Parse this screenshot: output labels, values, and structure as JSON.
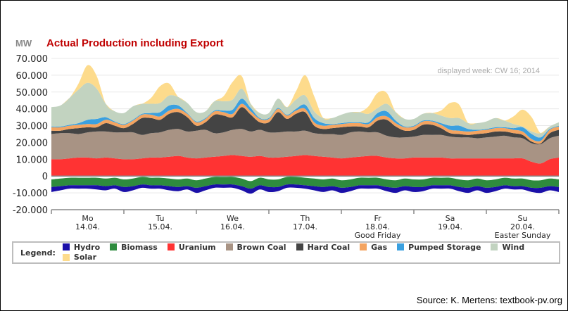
{
  "chart_data": {
    "type": "area",
    "title": "Actual Production including Export",
    "unit_label": "MW",
    "subtitle": "displayed week: CW 16; 2014",
    "ylim": [
      -20000,
      70000
    ],
    "yticks": [
      "-20.000",
      "-10.000",
      "0",
      "10.000",
      "20.000",
      "30.000",
      "40.000",
      "50.000",
      "60.000",
      "70.000"
    ],
    "ytick_values": [
      -20000,
      -10000,
      0,
      10000,
      20000,
      30000,
      40000,
      50000,
      60000,
      70000
    ],
    "x_days": [
      {
        "day": "Mo",
        "date": "14.04.",
        "note": ""
      },
      {
        "day": "Tu",
        "date": "15.04.",
        "note": ""
      },
      {
        "day": "We",
        "date": "16.04.",
        "note": ""
      },
      {
        "day": "Th",
        "date": "17.04.",
        "note": ""
      },
      {
        "day": "Fr",
        "date": "18.04.",
        "note": "Good Friday"
      },
      {
        "day": "Sa",
        "date": "19.04.",
        "note": ""
      },
      {
        "day": "Su",
        "date": "20.04.",
        "note": "Easter Sunday"
      }
    ],
    "x_hours": [
      0,
      3,
      6,
      9,
      12,
      15,
      18,
      21,
      24,
      27,
      30,
      33,
      36,
      39,
      42,
      45,
      48,
      51,
      54,
      57,
      60,
      63,
      66,
      69,
      72,
      75,
      78,
      81,
      84,
      87,
      90,
      93,
      96,
      99,
      102,
      105,
      108,
      111,
      114,
      117,
      120,
      123,
      126,
      129,
      132,
      135,
      138,
      141,
      144,
      147,
      150,
      153,
      156,
      159,
      162,
      165,
      168
    ],
    "positive_series": [
      {
        "name": "Uranium",
        "color": "#ff3333",
        "values": [
          10000,
          10000,
          10500,
          11000,
          11000,
          10500,
          11000,
          10500,
          10000,
          10000,
          10500,
          11000,
          11000,
          11500,
          12000,
          11000,
          10500,
          11000,
          11500,
          12000,
          12500,
          12000,
          11500,
          12000,
          11000,
          11000,
          11500,
          12000,
          12500,
          12000,
          11500,
          11000,
          10500,
          11000,
          11500,
          12000,
          12000,
          11000,
          10500,
          10500,
          11000,
          11000,
          11000,
          11000,
          10500,
          10500,
          10500,
          10500,
          10500,
          10500,
          10500,
          10500,
          10500,
          8500,
          7500,
          10000,
          11000
        ]
      },
      {
        "name": "Brown Coal",
        "color": "#a89384",
        "values": [
          15000,
          15500,
          15000,
          14000,
          15000,
          16000,
          15500,
          15500,
          16000,
          16000,
          14000,
          14500,
          15000,
          16000,
          16000,
          15500,
          16500,
          16500,
          14000,
          14000,
          15000,
          16000,
          15000,
          15500,
          15000,
          15000,
          15000,
          14500,
          14500,
          13500,
          13500,
          14000,
          14000,
          15000,
          15000,
          14000,
          14000,
          13000,
          12500,
          12500,
          12500,
          13500,
          13500,
          13500,
          13000,
          12500,
          12500,
          12000,
          12500,
          13000,
          13500,
          12500,
          12000,
          11000,
          11500,
          12500,
          13000
        ]
      },
      {
        "name": "Hard Coal",
        "color": "#444444",
        "values": [
          2000,
          1500,
          2500,
          3500,
          3000,
          2500,
          5000,
          4000,
          2500,
          5000,
          10000,
          9000,
          7500,
          9500,
          10000,
          8500,
          3000,
          4500,
          11000,
          10000,
          7500,
          13000,
          10000,
          4500,
          6000,
          12000,
          7500,
          10500,
          11000,
          4500,
          3000,
          3500,
          4500,
          3500,
          3000,
          3000,
          7000,
          9500,
          6500,
          4000,
          4000,
          6000,
          6000,
          4000,
          2000,
          2000,
          1500,
          2500,
          2500,
          3000,
          2500,
          2500,
          2000,
          1000,
          500,
          3000,
          3500
        ]
      },
      {
        "name": "Gas",
        "color": "#f4a460",
        "values": [
          2000,
          2000,
          2000,
          2000,
          2000,
          2000,
          2000,
          2000,
          2000,
          2000,
          2000,
          2000,
          2000,
          2000,
          2000,
          2000,
          2000,
          2000,
          2000,
          2000,
          2000,
          2000,
          2000,
          2000,
          2000,
          2000,
          2000,
          2000,
          2000,
          2000,
          2000,
          2000,
          2000,
          2000,
          2000,
          2000,
          2000,
          2000,
          2000,
          2000,
          2000,
          2000,
          2000,
          2000,
          2000,
          2000,
          2000,
          2000,
          2000,
          2000,
          2000,
          2000,
          2000,
          1500,
          1500,
          2000,
          2000
        ]
      },
      {
        "name": "Pumped Storage",
        "color": "#3aa0e0",
        "values": [
          500,
          500,
          500,
          1000,
          2500,
          3000,
          1500,
          500,
          500,
          500,
          500,
          1000,
          2500,
          3000,
          2000,
          500,
          500,
          500,
          500,
          1000,
          2500,
          3000,
          2000,
          500,
          500,
          500,
          500,
          1000,
          2500,
          2500,
          1500,
          500,
          500,
          500,
          500,
          1000,
          2500,
          3000,
          1500,
          500,
          500,
          500,
          500,
          1000,
          2500,
          3000,
          1500,
          500,
          500,
          500,
          500,
          1000,
          2500,
          3000,
          2000,
          500,
          500
        ]
      },
      {
        "name": "Wind",
        "color": "#c2d3c0",
        "values": [
          11500,
          12500,
          16000,
          20000,
          22000,
          18000,
          8000,
          6000,
          6500,
          8000,
          6000,
          5500,
          5500,
          6000,
          5000,
          6000,
          5500,
          4000,
          5500,
          5500,
          6000,
          6000,
          2500,
          3000,
          3000,
          5500,
          4500,
          5500,
          5500,
          4000,
          3000,
          3500,
          5000,
          6000,
          6000,
          5000,
          3000,
          4500,
          5000,
          4500,
          4000,
          4000,
          4500,
          4500,
          4500,
          4500,
          3500,
          4000,
          4500,
          5500,
          4000,
          2500,
          500,
          1500,
          2500,
          1500,
          2000
        ]
      },
      {
        "name": "Solar",
        "color": "#fddb8c",
        "values": [
          0,
          0,
          0,
          3500,
          10500,
          7500,
          0,
          0,
          0,
          0,
          0,
          3500,
          10000,
          7000,
          0,
          0,
          0,
          0,
          0,
          3000,
          10500,
          7500,
          0,
          0,
          0,
          0,
          0,
          5000,
          12000,
          9000,
          0,
          0,
          0,
          0,
          0,
          4500,
          9000,
          6500,
          0,
          0,
          0,
          0,
          0,
          3000,
          9000,
          8000,
          0,
          0,
          0,
          0,
          0,
          4500,
          10000,
          8500,
          0,
          0,
          0
        ]
      }
    ],
    "negative_series": [
      {
        "name": "Biomass",
        "color": "#2e8b3e",
        "values": [
          -4500,
          -4500,
          -4500,
          -4500,
          -4500,
          -4500,
          -4500,
          -4500,
          -4500,
          -4500,
          -4500,
          -4500,
          -4500,
          -4500,
          -4500,
          -4500,
          -4500,
          -4500,
          -4500,
          -4500,
          -4500,
          -4500,
          -4500,
          -4500,
          -4500,
          -4500,
          -4500,
          -4500,
          -4500,
          -4500,
          -4500,
          -4500,
          -4500,
          -4500,
          -4500,
          -4500,
          -4500,
          -4500,
          -4500,
          -4500,
          -4500,
          -4500,
          -4500,
          -4500,
          -4500,
          -4500,
          -4500,
          -4500,
          -4500,
          -4500,
          -4500,
          -4500,
          -4500,
          -4500,
          -4500,
          -4500,
          -4500
        ]
      },
      {
        "name": "Hydro",
        "color": "#1a0fa8",
        "values": [
          -3000,
          -2500,
          -2000,
          -2000,
          -2000,
          -2500,
          -2500,
          -2000,
          -3000,
          -2500,
          -2000,
          -2000,
          -2000,
          -2500,
          -2500,
          -2000,
          -3000,
          -2500,
          -2000,
          -2000,
          -2000,
          -2500,
          -3000,
          -2500,
          -3000,
          -2500,
          -2000,
          -2000,
          -2000,
          -2500,
          -3000,
          -2500,
          -3000,
          -2500,
          -2000,
          -2000,
          -2000,
          -2500,
          -3000,
          -2500,
          -3000,
          -2500,
          -2000,
          -2000,
          -2000,
          -2500,
          -3000,
          -2500,
          -3000,
          -2500,
          -2000,
          -2000,
          -2000,
          -2500,
          -3000,
          -2500,
          -3000
        ]
      }
    ],
    "negative_dips": [
      -2000,
      -1500,
      -1000,
      -1000,
      -1000,
      -1000,
      -1500,
      -1000,
      -2000,
      -1500,
      -500,
      -1000,
      -1000,
      -1500,
      -2000,
      -1500,
      -2500,
      -1500,
      -500,
      -500,
      -500,
      -1500,
      -3000,
      -1000,
      -2000,
      -2000,
      -500,
      -500,
      -1000,
      -1500,
      -2000,
      -1500,
      -2500,
      -2000,
      -1000,
      -1000,
      -1000,
      -2000,
      -2500,
      -1500,
      -2000,
      -2000,
      -1000,
      -1000,
      -1000,
      -2000,
      -2500,
      -1500,
      -2500,
      -2000,
      -1000,
      -1500,
      -1500,
      -2500,
      -2500,
      -1500,
      -2000
    ]
  },
  "legend": {
    "title": "Legend:",
    "items": [
      {
        "label": "Hydro",
        "color": "#1a0fa8"
      },
      {
        "label": "Biomass",
        "color": "#2e8b3e"
      },
      {
        "label": "Uranium",
        "color": "#ff3333"
      },
      {
        "label": "Brown Coal",
        "color": "#a89384"
      },
      {
        "label": "Hard Coal",
        "color": "#444444"
      },
      {
        "label": "Gas",
        "color": "#f4a460"
      },
      {
        "label": "Pumped Storage",
        "color": "#3aa0e0"
      },
      {
        "label": "Wind",
        "color": "#c2d3c0"
      },
      {
        "label": "Solar",
        "color": "#fddb8c"
      }
    ]
  },
  "source_text": "Source: K. Mertens: textbook-pv.org"
}
